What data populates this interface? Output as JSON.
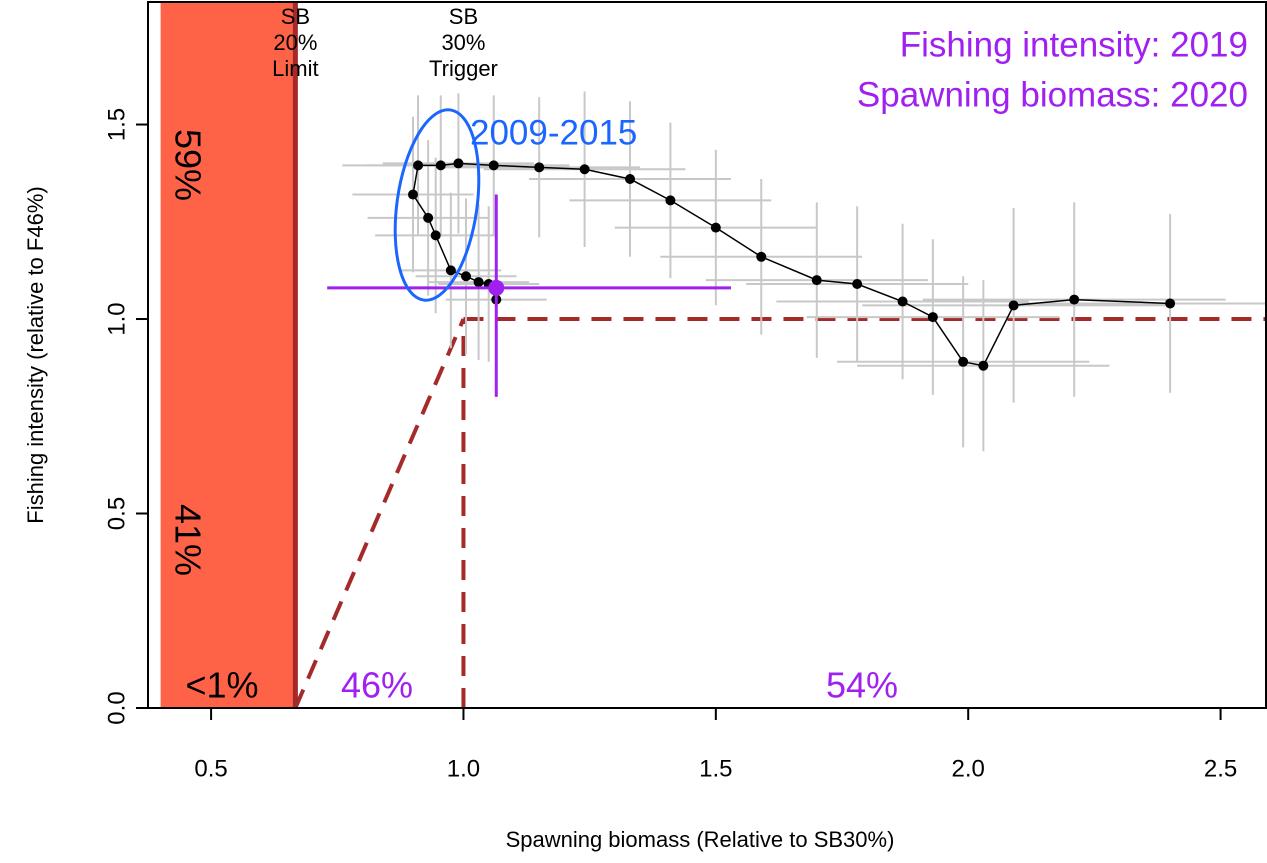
{
  "chart_data": {
    "type": "kobe",
    "title_lines": [
      "Fishing intensity: 2019",
      "Spawning biomass: 2020"
    ],
    "x_label": "Spawning biomass (Relative to SB30%)",
    "y_label": "Fishing intensity (relative to F46%)",
    "annotation": "2009-2015",
    "xlim": [
      0.375,
      2.59
    ],
    "ylim": [
      0,
      1.815
    ],
    "xticks": [
      0.5,
      {
        "value": 1,
        "label": "1.0"
      },
      1.5,
      {
        "value": 2,
        "label": "2.0"
      },
      2.5
    ],
    "yticks": [
      {
        "value": 0,
        "label": "0.0"
      },
      0.5,
      {
        "value": 1,
        "label": "1.0"
      },
      1.5
    ],
    "limit_zone": [
      0.4,
      0.667
    ],
    "limit": 0.667,
    "trigger": 1,
    "f_target": 1,
    "limit_label": [
      "SB",
      "20%",
      "Limit"
    ],
    "trigger_label": [
      "SB",
      "30%",
      "Trigger"
    ],
    "zone_color": "#ff6347",
    "ref_color": "#a52a2a",
    "line_color": "#000000",
    "error_color": "#c8c8c8",
    "accent_color": "#a020f0",
    "annotation_color": "#1a66ff",
    "x": [
      2.4,
      2.21,
      2.09,
      2.03,
      1.99,
      1.93,
      1.87,
      1.78,
      1.7,
      1.59,
      1.5,
      1.41,
      1.33,
      1.24,
      1.15,
      1.06,
      0.99,
      0.955,
      0.91,
      0.9,
      0.93,
      0.945,
      0.975,
      1.005,
      1.03,
      1.05,
      1.065
    ],
    "values": [
      1.04,
      1.05,
      1.035,
      0.88,
      0.89,
      1.005,
      1.045,
      1.09,
      1.1,
      1.16,
      1.235,
      1.305,
      1.36,
      1.385,
      1.39,
      1.395,
      1.4,
      1.395,
      1.395,
      1.32,
      1.26,
      1.215,
      1.125,
      1.11,
      1.095,
      1.09,
      1.05
    ],
    "xerr": [
      0.3,
      0.3,
      0.3,
      0.25,
      0.25,
      0.25,
      0.25,
      0.22,
      0.22,
      0.2,
      0.2,
      0.2,
      0.2,
      0.2,
      0.2,
      0.15,
      0.15,
      0.15,
      0.15,
      0.12,
      0.12,
      0.12,
      0.1,
      0.1,
      0.1,
      0.1,
      0.1
    ],
    "yerr": [
      0.23,
      0.25,
      0.25,
      0.22,
      0.22,
      0.2,
      0.2,
      0.2,
      0.2,
      0.2,
      0.2,
      0.2,
      0.2,
      0.2,
      0.18,
      0.18,
      0.18,
      0.18,
      0.18,
      0.2,
      0.2,
      0.2,
      0.2,
      0.2,
      0.2,
      0.2,
      0.2
    ],
    "current_point": {
      "x": 1.065,
      "y": 1.08,
      "x_interval": [
        0.73,
        1.53
      ],
      "y_interval": [
        0.8,
        1.32
      ]
    },
    "quadrant_labels": {
      "values": [
        59,
        41,
        1,
        46,
        54
      ],
      "value_labels": [
        "59%",
        "41%",
        "<1%",
        "46%",
        "54%"
      ]
    }
  }
}
